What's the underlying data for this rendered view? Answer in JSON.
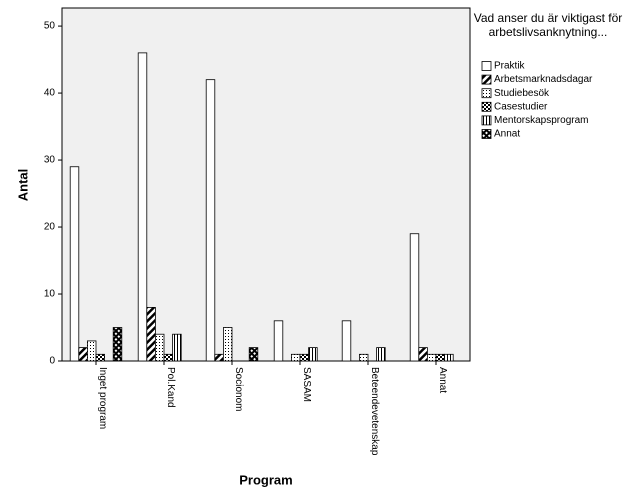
{
  "chart_data": {
    "type": "bar",
    "x_label": "Program",
    "y_label": "Antal",
    "legend_title": "Vad anser du är viktigast för arbetslivsanknytning...",
    "categories": [
      "Inget program",
      "Pol.Kand",
      "Socionom",
      "SASAM",
      "Beteendevetenskap",
      "Annat"
    ],
    "series": [
      {
        "name": "Praktik",
        "color": "#ffffff",
        "pattern": "solid",
        "values": [
          29,
          46,
          42,
          6,
          6,
          19
        ]
      },
      {
        "name": "Arbetsmarknadsdagar",
        "color": "#000000",
        "pattern": "diagonal",
        "values": [
          2,
          8,
          1,
          0,
          0,
          2
        ]
      },
      {
        "name": "Studiebesök",
        "color": "#000000",
        "pattern": "dotted",
        "values": [
          3,
          4,
          5,
          1,
          1,
          1
        ]
      },
      {
        "name": "Casestudier",
        "color": "#000000",
        "pattern": "checker",
        "values": [
          1,
          1,
          0,
          1,
          0,
          1
        ]
      },
      {
        "name": "Mentorskapsprogram",
        "color": "#000000",
        "pattern": "vertical",
        "values": [
          0,
          4,
          0,
          2,
          2,
          1
        ]
      },
      {
        "name": "Annat",
        "color": "#000000",
        "pattern": "crosshatch",
        "values": [
          5,
          0,
          2,
          0,
          0,
          0
        ]
      }
    ],
    "ylim": [
      0,
      52.7
    ],
    "yticks": [
      0,
      10,
      20,
      30,
      40,
      50
    ]
  }
}
